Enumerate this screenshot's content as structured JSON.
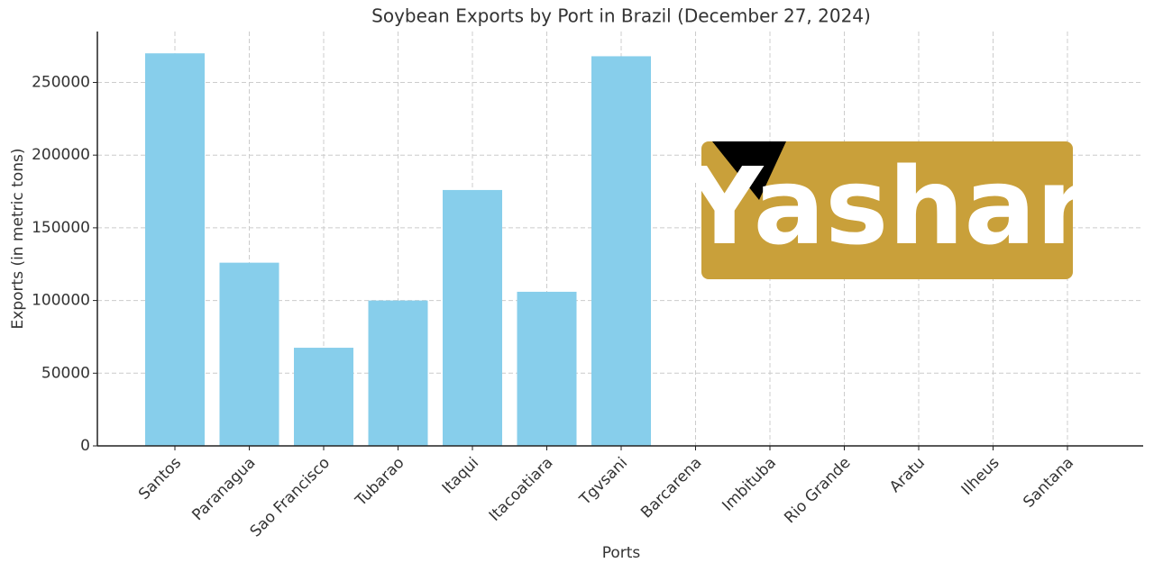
{
  "chart_data": {
    "type": "bar",
    "title": "Soybean Exports by Port in Brazil (December 27, 2024)",
    "x_label": "Ports",
    "y_label": "Exports (in metric tons)",
    "categories": [
      "Santos",
      "Paranagua",
      "Sao Francisco",
      "Tubarao",
      "Itaqui",
      "Itacoatiara",
      "Tgvsani",
      "Barcarena",
      "Imbituba",
      "Rio Grande",
      "Aratu",
      "Ilheus",
      "Santana"
    ],
    "values": [
      270000,
      126000,
      67500,
      100000,
      176000,
      106000,
      268000,
      0,
      0,
      0,
      0,
      0,
      0
    ],
    "color": "#87ceeb",
    "ylim": [
      0,
      285000
    ],
    "yticks": [
      0,
      50000,
      100000,
      150000,
      200000,
      250000
    ],
    "grid": true
  },
  "logo": {
    "text": "Yashar"
  }
}
